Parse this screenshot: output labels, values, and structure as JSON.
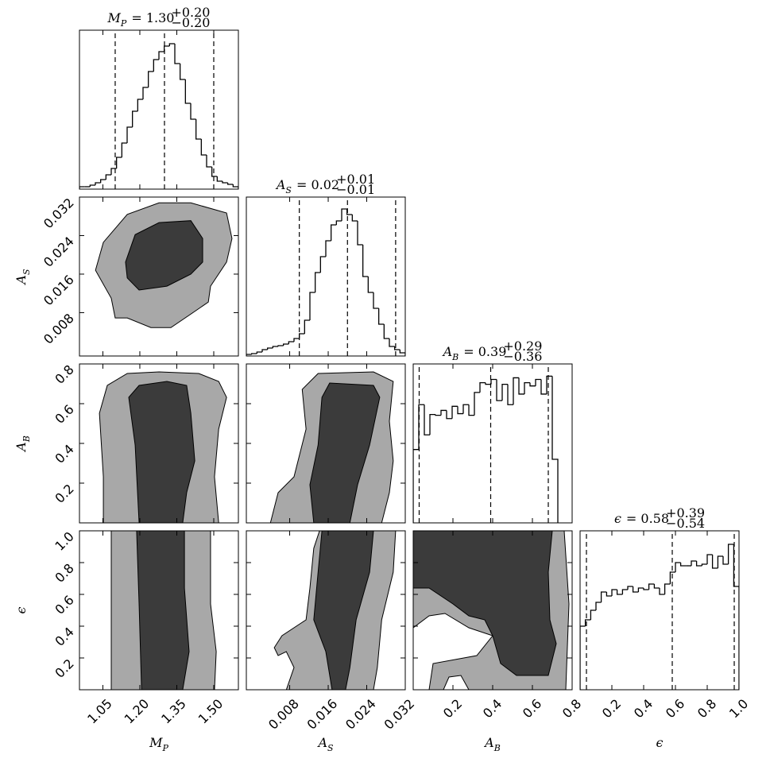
{
  "chart_data": [
    {
      "type": "histogram",
      "title": {
        "main": "M",
        "sub": "P",
        "value": "= 1.30",
        "plus": "+0.20",
        "minus": "−0.20"
      },
      "bins": [
        0.955,
        0.9765,
        0.998,
        1.0195,
        1.041,
        1.0625,
        1.084,
        1.1055,
        1.127,
        1.1485,
        1.17,
        1.1915,
        1.213,
        1.2345,
        1.256,
        1.2775,
        1.299,
        1.3205,
        1.342,
        1.3635,
        1.385,
        1.4065,
        1.428,
        1.4495,
        1.471,
        1.4925,
        1.514,
        1.5355,
        1.557,
        1.5785,
        1.6
      ],
      "values": [
        3,
        3,
        5,
        8,
        12,
        18,
        26,
        40,
        58,
        78,
        98,
        113,
        128,
        148,
        163,
        173,
        180,
        183,
        158,
        138,
        108,
        88,
        63,
        43,
        28,
        16,
        10,
        8,
        6,
        3
      ],
      "quantiles": [
        1.1,
        1.3,
        1.5
      ],
      "color": "#000000",
      "xlim": [
        0.955,
        1.6
      ],
      "ylim": [
        0,
        200
      ],
      "xticks": [
        1.05,
        {
          "value": 1.2,
          "label": "1.20"
        },
        1.35,
        {
          "value": 1.5,
          "label": "1.50"
        }
      ]
    },
    {
      "type": "contour",
      "xlim": [
        0.955,
        1.6
      ],
      "ylim": [
        -0.001,
        0.032
      ],
      "xticks": [
        1.05,
        {
          "value": 1.2,
          "label": "1.20"
        },
        1.35,
        {
          "value": 1.5,
          "label": "1.50"
        }
      ],
      "yticks": [
        0.008,
        0.016,
        0.024,
        0.032
      ],
      "ylabel": {
        "main": "A",
        "sub": "S"
      },
      "contours": [
        {
          "color": "#a8a8a8",
          "x": [
            1.02,
            1.052,
            1.149,
            1.278,
            1.407,
            1.552,
            1.574,
            1.552,
            1.487,
            1.478,
            1.407,
            1.326,
            1.245,
            1.149,
            1.1,
            1.084
          ],
          "y": [
            0.0168,
            0.0226,
            0.0284,
            0.0308,
            0.0308,
            0.0287,
            0.0234,
            0.0185,
            0.0135,
            0.0102,
            0.0077,
            0.0049,
            0.0049,
            0.0069,
            0.0069,
            0.011
          ]
        },
        {
          "color": "#3b3b3b",
          "x": [
            1.142,
            1.181,
            1.278,
            1.407,
            1.455,
            1.455,
            1.407,
            1.31,
            1.197,
            1.149
          ],
          "y": [
            0.0185,
            0.0242,
            0.0267,
            0.0271,
            0.0234,
            0.0185,
            0.016,
            0.0135,
            0.0127,
            0.0152
          ]
        }
      ]
    },
    {
      "type": "histogram",
      "title": {
        "main": "A",
        "sub": "S",
        "value": "= 0.02",
        "plus": "+0.01",
        "minus": "−0.01"
      },
      "bins": [
        -0.001,
        0.0001,
        0.0012,
        0.0023,
        0.0034,
        0.0045,
        0.0056,
        0.0067,
        0.0078,
        0.0089,
        0.01,
        0.0111,
        0.0122,
        0.0133,
        0.0144,
        0.0155,
        0.0166,
        0.0177,
        0.0188,
        0.0199,
        0.021,
        0.0221,
        0.0232,
        0.0243,
        0.0254,
        0.0265,
        0.0276,
        0.0287,
        0.0298,
        0.0309,
        0.032
      ],
      "values": [
        2,
        3,
        5,
        8,
        10,
        12,
        13,
        15,
        18,
        22,
        28,
        45,
        80,
        105,
        125,
        145,
        165,
        170,
        185,
        178,
        170,
        140,
        100,
        80,
        60,
        40,
        22,
        12,
        8,
        4
      ],
      "quantiles": [
        0.01,
        0.02,
        0.03
      ],
      "color": "#000000",
      "xlim": [
        -0.001,
        0.032
      ],
      "ylim": [
        0,
        200
      ],
      "xticks": [
        0.008,
        0.016,
        0.024,
        0.032
      ]
    },
    {
      "type": "contour",
      "xlim": [
        0.955,
        1.6
      ],
      "ylim": [
        0,
        0.8
      ],
      "xticks": [
        1.05,
        {
          "value": 1.2,
          "label": "1.20"
        },
        1.35,
        {
          "value": 1.5,
          "label": "1.50"
        }
      ],
      "yticks": [
        0.2,
        0.4,
        0.6,
        0.8
      ],
      "ylabel": {
        "main": "A",
        "sub": "B"
      },
      "contours": [
        {
          "color": "#a8a8a8",
          "x": [
            1.052,
            1.052,
            1.036,
            1.068,
            1.149,
            1.278,
            1.439,
            1.52,
            1.552,
            1.52,
            1.503,
            1.52
          ],
          "y": [
            0,
            0.232,
            0.552,
            0.692,
            0.752,
            0.76,
            0.752,
            0.712,
            0.632,
            0.472,
            0.232,
            0
          ]
        },
        {
          "color": "#3b3b3b",
          "x": [
            1.197,
            1.181,
            1.155,
            1.197,
            1.31,
            1.39,
            1.407,
            1.423,
            1.39,
            1.374
          ],
          "y": [
            0,
            0.392,
            0.632,
            0.692,
            0.712,
            0.692,
            0.552,
            0.312,
            0.152,
            0
          ]
        }
      ]
    },
    {
      "type": "contour",
      "xlim": [
        -0.001,
        0.032
      ],
      "ylim": [
        0,
        0.8
      ],
      "xticks": [
        0.008,
        0.016,
        0.024,
        0.032
      ],
      "yticks": [
        0.2,
        0.4,
        0.6,
        0.8
      ],
      "contours": [
        {
          "color": "#a8a8a8",
          "x": [
            0.004,
            0.0056,
            0.0089,
            0.0114,
            0.0106,
            0.0139,
            0.0254,
            0.0295,
            0.0287,
            0.0295,
            0.0287,
            0.0271
          ],
          "y": [
            0,
            0.152,
            0.232,
            0.472,
            0.672,
            0.752,
            0.76,
            0.712,
            0.512,
            0.312,
            0.152,
            0
          ]
        },
        {
          "color": "#3b3b3b",
          "x": [
            0.013,
            0.0122,
            0.0139,
            0.0147,
            0.0163,
            0.0254,
            0.0267,
            0.0246,
            0.0221,
            0.0205
          ],
          "y": [
            0,
            0.192,
            0.392,
            0.632,
            0.704,
            0.692,
            0.632,
            0.392,
            0.192,
            0
          ]
        }
      ]
    },
    {
      "type": "histogram",
      "title": {
        "main": "A",
        "sub": "B",
        "value": "= 0.39",
        "plus": "+0.29",
        "minus": "−0.36"
      },
      "bins": [
        0,
        0.028,
        0.056,
        0.084,
        0.112,
        0.14,
        0.168,
        0.196,
        0.224,
        0.252,
        0.28,
        0.308,
        0.336,
        0.364,
        0.392,
        0.42,
        0.448,
        0.476,
        0.504,
        0.532,
        0.56,
        0.588,
        0.616,
        0.644,
        0.672,
        0.7,
        0.728
      ],
      "values": [
        90,
        145,
        108,
        133,
        132,
        138,
        128,
        143,
        134,
        145,
        132,
        160,
        172,
        170,
        176,
        150,
        170,
        145,
        178,
        158,
        172,
        168,
        176,
        158,
        180,
        78
      ],
      "quantiles": [
        0.03,
        0.39,
        0.68
      ],
      "color": "#000000",
      "xlim": [
        0,
        0.8
      ],
      "ylim": [
        0,
        195
      ],
      "xticks": [
        0.2,
        0.4,
        0.6,
        0.8
      ]
    },
    {
      "type": "contour",
      "xlim": [
        0.955,
        1.6
      ],
      "ylim": [
        0,
        1
      ],
      "xticks": [
        1.05,
        {
          "value": 1.2,
          "label": "1.20"
        },
        1.35,
        {
          "value": 1.5,
          "label": "1.50"
        }
      ],
      "yticks": [
        0.2,
        0.4,
        0.6,
        0.8,
        {
          "value": 1,
          "label": "1.0"
        }
      ],
      "xlabel": {
        "main": "M",
        "sub": "P"
      },
      "ylabel": {
        "main": "ϵ"
      },
      "contours": [
        {
          "color": "#a8a8a8",
          "x": [
            1.084,
            1.084,
            1.487,
            1.487,
            1.51,
            1.503
          ],
          "y": [
            0,
            1,
            1,
            0.54,
            0.24,
            0
          ]
        },
        {
          "color": "#3b3b3b",
          "x": [
            1.207,
            1.197,
            1.187,
            1.381,
            1.381,
            1.4,
            1.374
          ],
          "y": [
            0,
            0.54,
            1,
            1,
            0.64,
            0.24,
            0
          ]
        }
      ]
    },
    {
      "type": "contour",
      "xlim": [
        -0.001,
        0.032
      ],
      "ylim": [
        0,
        1
      ],
      "xticks": [
        0.008,
        0.016,
        0.024,
        0.032
      ],
      "yticks": [
        0.2,
        0.4,
        0.6,
        0.8,
        {
          "value": 1,
          "label": "1.0"
        }
      ],
      "xlabel": {
        "main": "A",
        "sub": "S"
      },
      "contours": [
        {
          "color": "#a8a8a8",
          "x": [
            0.0073,
            0.0089,
            0.0073,
            0.0056,
            0.0048,
            0.0064,
            0.0114,
            0.0122,
            0.013,
            0.0142,
            0.03,
            0.0295,
            0.0271,
            0.0262,
            0.0254
          ],
          "y": [
            0,
            0.14,
            0.24,
            0.215,
            0.265,
            0.34,
            0.44,
            0.64,
            0.89,
            1,
            1,
            0.74,
            0.44,
            0.14,
            0
          ]
        },
        {
          "color": "#3b3b3b",
          "x": [
            0.0168,
            0.0155,
            0.013,
            0.0139,
            0.0147,
            0.0254,
            0.0246,
            0.0218,
            0.0205,
            0.0196
          ],
          "y": [
            0,
            0.24,
            0.44,
            0.74,
            1,
            1,
            0.74,
            0.44,
            0.14,
            0
          ]
        }
      ]
    },
    {
      "type": "contour",
      "xlim": [
        0,
        0.8
      ],
      "ylim": [
        0,
        1
      ],
      "xticks": [
        0.2,
        0.4,
        0.6,
        0.8
      ],
      "yticks": [
        0.2,
        0.4,
        0.6,
        0.8,
        {
          "value": 1,
          "label": "1.0"
        }
      ],
      "xlabel": {
        "main": "A",
        "sub": "B"
      },
      "contours": [
        {
          "color": "#a8a8a8",
          "x": [
            0,
            0,
            0.76,
            0.784,
            0.768,
            0.28,
            0.24,
            0.18,
            0.152,
            0.08,
            0.1,
            0.32,
            0.4,
            0.28,
            0.16,
            0.08
          ],
          "y": [
            0.39,
            1,
            1,
            0.54,
            0,
            0,
            0.09,
            0.08,
            0,
            0,
            0.165,
            0.215,
            0.34,
            0.39,
            0.48,
            0.465
          ]
        },
        {
          "color": "#3b3b3b",
          "x": [
            0,
            0.7,
            0.68,
            0.688,
            0.72,
            0.68,
            0.52,
            0.44,
            0.4,
            0.36,
            0.28,
            0.2,
            0.08,
            0
          ],
          "y": [
            1,
            1,
            0.74,
            0.44,
            0.29,
            0.09,
            0.09,
            0.165,
            0.34,
            0.44,
            0.465,
            0.54,
            0.64,
            0.64
          ]
        }
      ]
    },
    {
      "type": "histogram",
      "title": {
        "main": "ϵ",
        "value": "= 0.58",
        "plus": "+0.39",
        "minus": "−0.54"
      },
      "bins": [
        0,
        0.033,
        0.067,
        0.1,
        0.133,
        0.167,
        0.2,
        0.233,
        0.267,
        0.3,
        0.333,
        0.367,
        0.4,
        0.433,
        0.467,
        0.5,
        0.533,
        0.567,
        0.6,
        0.633,
        0.667,
        0.7,
        0.733,
        0.767,
        0.8,
        0.833,
        0.867,
        0.9,
        0.933,
        0.967,
        1
      ],
      "values": [
        80,
        88,
        100,
        110,
        123,
        118,
        126,
        120,
        126,
        130,
        123,
        128,
        126,
        133,
        128,
        120,
        133,
        148,
        160,
        156,
        156,
        162,
        156,
        158,
        170,
        153,
        168,
        158,
        183,
        130
      ],
      "quantiles": [
        0.04,
        0.58,
        0.97
      ],
      "color": "#000000",
      "xlim": [
        0,
        1
      ],
      "ylim": [
        0,
        200
      ],
      "xticks": [
        0.2,
        0.4,
        0.6,
        0.8,
        {
          "value": 1,
          "label": "1.0"
        }
      ],
      "xlabel": {
        "main": "ϵ"
      }
    }
  ]
}
